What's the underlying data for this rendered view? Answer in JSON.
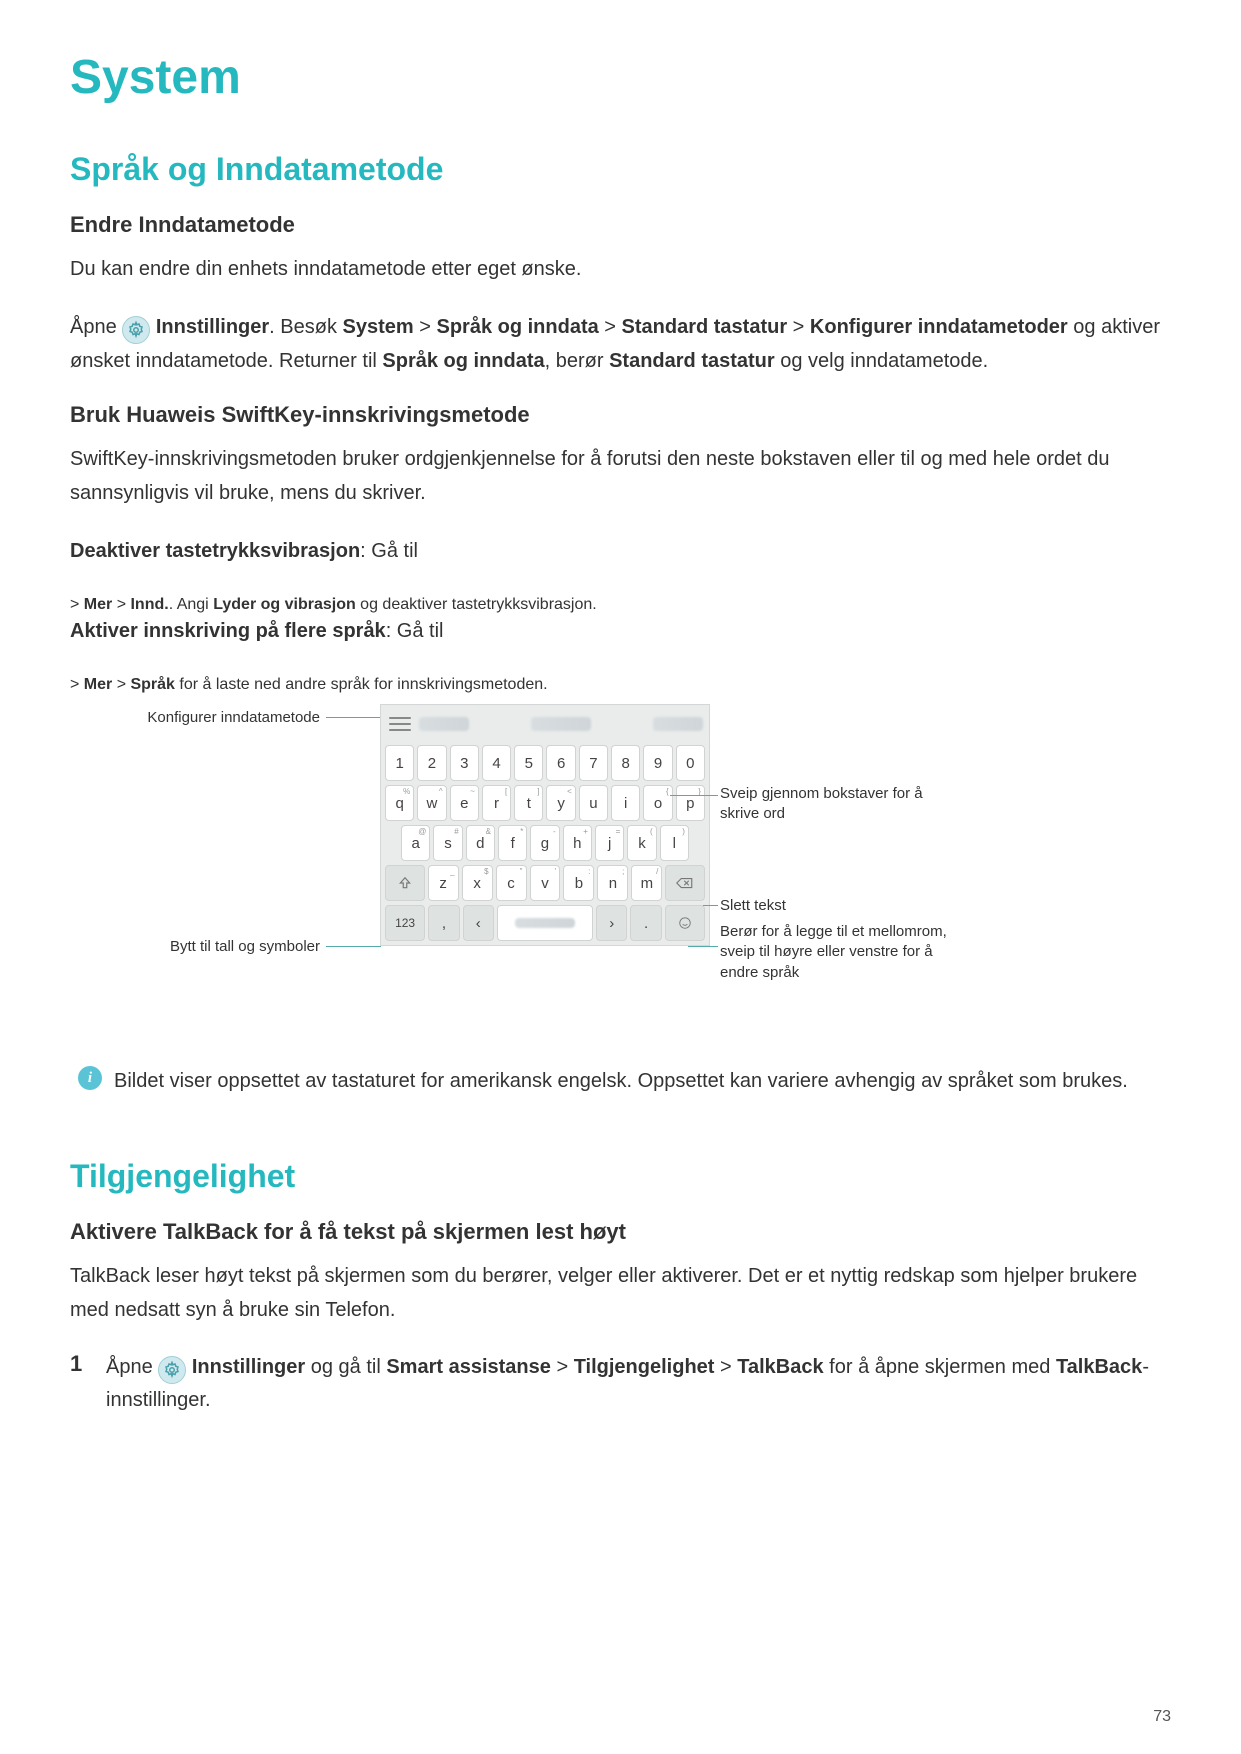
{
  "colors": {
    "accent": "#25b9bf",
    "text": "#333333",
    "info_icon_bg": "#5bc3d6",
    "settings_icon_bg": "#cfe9ef",
    "key_bg": "#ffffff",
    "key_fn_bg": "#dee2e1",
    "kbd_bg": "#e9eceb",
    "callout_line": "#5aa"
  },
  "title": "System",
  "section1": {
    "heading": "Språk og Inndatametode",
    "sub1": {
      "heading": "Endre Inndatametode",
      "intro": "Du kan endre din enhets inndatametode etter eget ønske.",
      "p1_pre": "Åpne ",
      "p1_settings": "Innstillinger",
      "p1_after1": ". Besøk ",
      "p1_system": "System",
      "p1_gt1": " > ",
      "p1_sprak": "Språk og inndata",
      "p1_gt2": " > ",
      "p1_std": "Standard tastatur",
      "p1_gt3": " > ",
      "p1_konf": "Konfigurer inndatametoder",
      "p1_after2": " og aktiver ønsket inndatametode. Returner til ",
      "p1_sprak2": "Språk og inndata",
      "p1_after3": ", berør ",
      "p1_std2": "Standard tastatur",
      "p1_after4": " og velg inndatametode."
    },
    "sub2": {
      "heading": "Bruk Huaweis SwiftKey-innskrivingsmetode",
      "intro": "SwiftKey-innskrivingsmetoden bruker ordgjenkjennelse for å forutsi den neste bokstaven eller til og med hele ordet du sannsynligvis vil bruke, mens du skriver.",
      "p2_bold": "Deaktiver tastetrykksvibrasjon",
      "p2_after1": ": Gå til ",
      "p2_gt": " > ",
      "p2_mer": "Mer",
      "p2_innd": "Innd.",
      "p2_after2": ". Angi ",
      "p2_lyder": "Lyder og vibrasjon",
      "p2_after3": " og deaktiver tastetrykksvibrasjon.",
      "p3_bold": "Aktiver innskriving på flere språk",
      "p3_after1": ": Gå til ",
      "p3_gt": " > ",
      "p3_mer": "Mer",
      "p3_sprak": "Språk",
      "p3_after2": " for å laste ned andre språk for innskrivingsmetoden."
    }
  },
  "keyboard": {
    "rows": {
      "num": [
        "1",
        "2",
        "3",
        "4",
        "5",
        "6",
        "7",
        "8",
        "9",
        "0"
      ],
      "r1": [
        "q",
        "w",
        "e",
        "r",
        "t",
        "y",
        "u",
        "i",
        "o",
        "p"
      ],
      "r1sup": [
        "%",
        "^",
        "~",
        "[",
        "]",
        "<",
        "",
        "",
        "{",
        "}"
      ],
      "r2": [
        "a",
        "s",
        "d",
        "f",
        "g",
        "h",
        "j",
        "k",
        "l"
      ],
      "r2sup": [
        "@",
        "#",
        "&",
        "*",
        "-",
        "+",
        "=",
        "(",
        ")"
      ],
      "r3": [
        "z",
        "x",
        "c",
        "v",
        "b",
        "n",
        "m"
      ],
      "r3sup": [
        "_",
        "$",
        "\"",
        "'",
        ":",
        ";",
        "/"
      ]
    },
    "fn_123": "123",
    "fn_comma": ",",
    "fn_dot": ".",
    "callouts": {
      "c1": "Konfigurer inndatametode",
      "c2": "Bytt til tall og symboler",
      "c3": "Sveip gjennom bokstaver for å skrive ord",
      "c4": "Slett tekst",
      "c5": "Berør for å legge til et mellomrom, sveip til høyre eller venstre for å endre språk"
    }
  },
  "info_note": "Bildet viser oppsettet av tastaturet for amerikansk engelsk. Oppsettet kan variere avhengig av språket som brukes.",
  "section2": {
    "heading": "Tilgjengelighet",
    "sub1": {
      "heading": "Aktivere TalkBack for å få tekst på skjermen lest høyt",
      "intro": "TalkBack leser høyt tekst på skjermen som du berører, velger eller aktiverer. Det er et nyttig redskap som hjelper brukere med nedsatt syn å bruke sin Telefon.",
      "step1_num": "1",
      "step1_pre": "Åpne ",
      "step1_settings": "Innstillinger",
      "step1_mid": " og gå til ",
      "step1_smart": "Smart assistanse",
      "step1_gt": " > ",
      "step1_tilgj": "Tilgjengelighet",
      "step1_talkback": "TalkBack",
      "step1_after": " for å åpne skjermen med ",
      "step1_tb2": "TalkBack",
      "step1_suffix": "-innstillinger."
    }
  },
  "page_number": "73"
}
